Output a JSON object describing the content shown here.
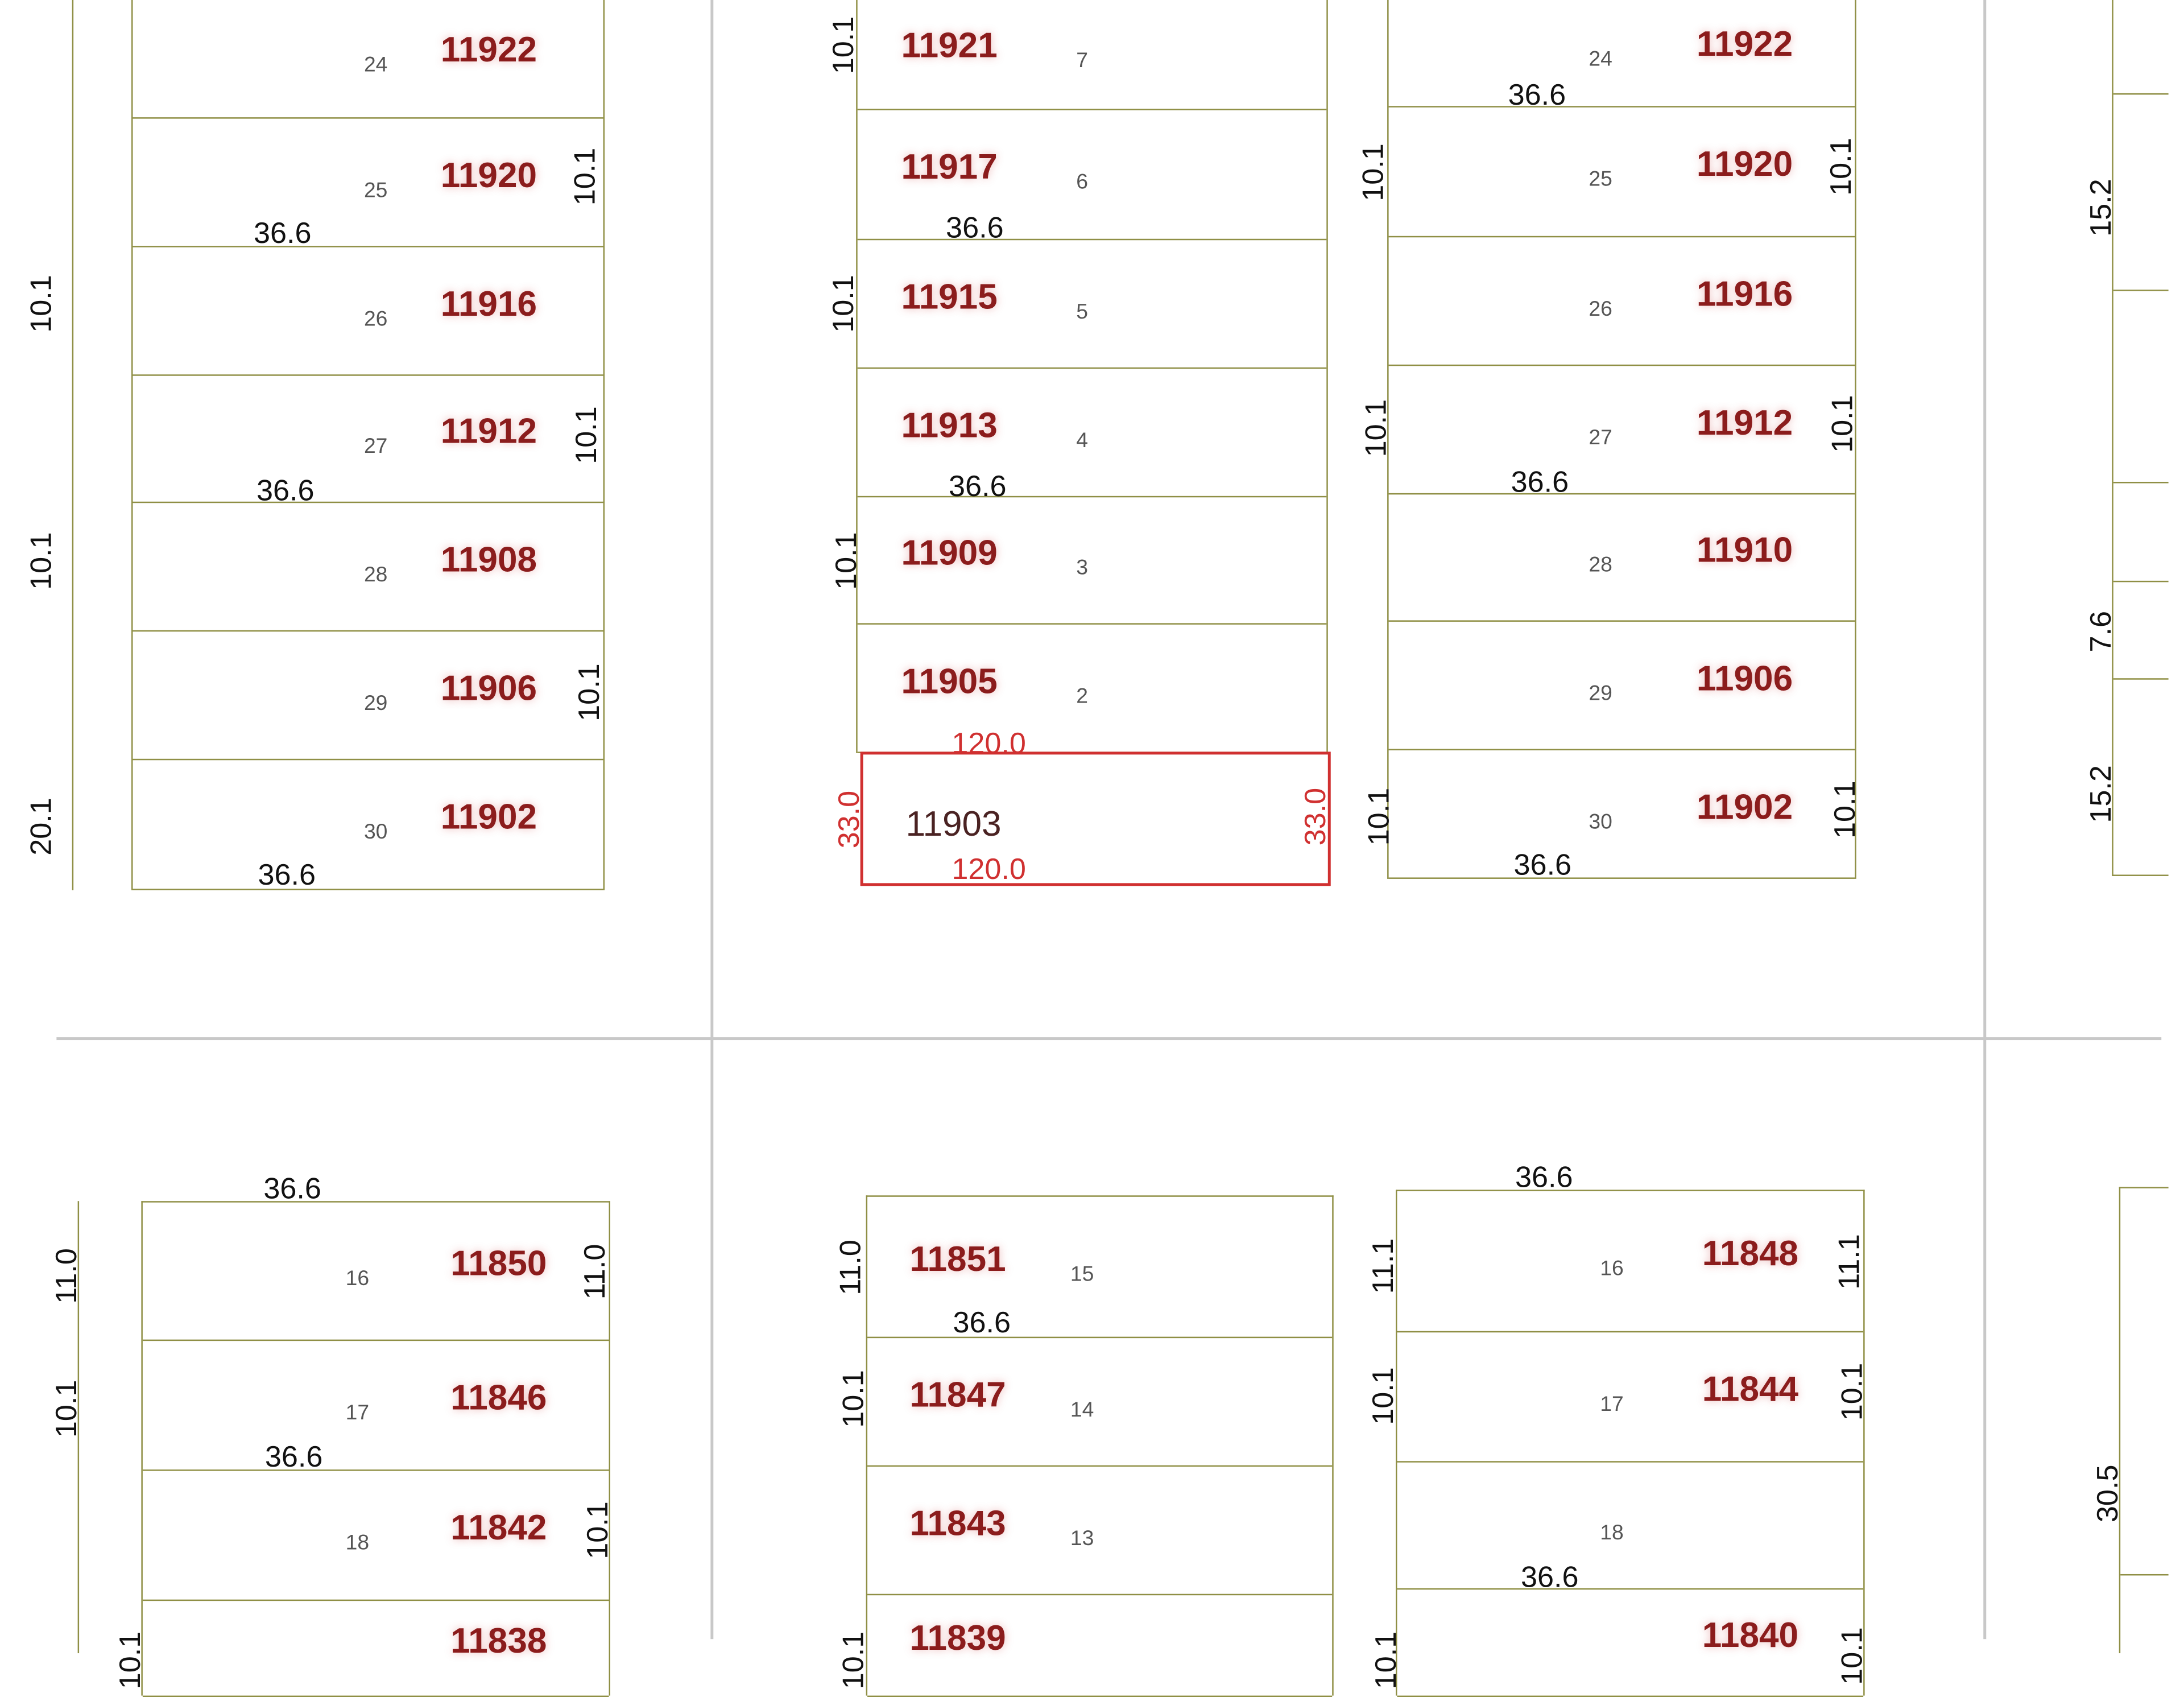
{
  "map": {
    "colors": {
      "lot_line": "#8f8f45",
      "address": "#8b1c1c",
      "selected_outline": "#d03030",
      "road_line": "#c8c8c8"
    },
    "selected_parcel": {
      "address": "11903",
      "dims": {
        "top": "120.0",
        "bottom": "120.0",
        "left": "33.0",
        "right": "33.0"
      }
    },
    "blocks": [
      {
        "lots": [
          {
            "lot": "24",
            "address": "11922"
          },
          {
            "lot": "25",
            "address": "11920"
          },
          {
            "lot": "26",
            "address": "11916"
          },
          {
            "lot": "27",
            "address": "11912"
          },
          {
            "lot": "28",
            "address": "11908"
          },
          {
            "lot": "29",
            "address": "11906"
          },
          {
            "lot": "30",
            "address": "11902"
          }
        ]
      },
      {
        "lots": [
          {
            "lot": "7",
            "address": "11921"
          },
          {
            "lot": "6",
            "address": "11917"
          },
          {
            "lot": "5",
            "address": "11915"
          },
          {
            "lot": "4",
            "address": "11913"
          },
          {
            "lot": "3",
            "address": "11909"
          },
          {
            "lot": "2",
            "address": "11905"
          }
        ]
      },
      {
        "lots": [
          {
            "lot": "24",
            "address": "11922"
          },
          {
            "lot": "25",
            "address": "11920"
          },
          {
            "lot": "26",
            "address": "11916"
          },
          {
            "lot": "27",
            "address": "11912"
          },
          {
            "lot": "28",
            "address": "11910"
          },
          {
            "lot": "29",
            "address": "11906"
          },
          {
            "lot": "30",
            "address": "11902"
          }
        ]
      },
      {
        "lots": [
          {
            "lot": "16",
            "address": "11850"
          },
          {
            "lot": "17",
            "address": "11846"
          },
          {
            "lot": "18",
            "address": "11842"
          },
          {
            "lot": "",
            "address": "11838"
          }
        ]
      },
      {
        "lots": [
          {
            "lot": "15",
            "address": "11851"
          },
          {
            "lot": "14",
            "address": "11847"
          },
          {
            "lot": "13",
            "address": "11843"
          },
          {
            "lot": "",
            "address": "11839"
          }
        ]
      },
      {
        "lots": [
          {
            "lot": "16",
            "address": "11848"
          },
          {
            "lot": "17",
            "address": "11844"
          },
          {
            "lot": "18",
            "address": ""
          },
          {
            "lot": "",
            "address": "11840"
          }
        ]
      }
    ],
    "dimension_labels": [
      "36.6",
      "36.6",
      "36.6",
      "10.1",
      "10.1",
      "10.1",
      "36.6",
      "36.6",
      "10.1",
      "10.1",
      "10.1",
      "36.6",
      "36.6",
      "36.6",
      "10.1",
      "10.1",
      "10.1",
      "10.1",
      "10.1",
      "10.1",
      "15.2",
      "7.6",
      "15.2",
      "36.6",
      "36.6",
      "11.0",
      "10.1",
      "11.0",
      "10.1",
      "36.6",
      "11.0",
      "10.1",
      "36.6",
      "36.6",
      "11.1",
      "11.1",
      "10.1",
      "10.1",
      "30.5",
      "10.1",
      "10.1",
      "10.1",
      "10.1",
      "20.1",
      "10.1",
      "10.1"
    ]
  }
}
